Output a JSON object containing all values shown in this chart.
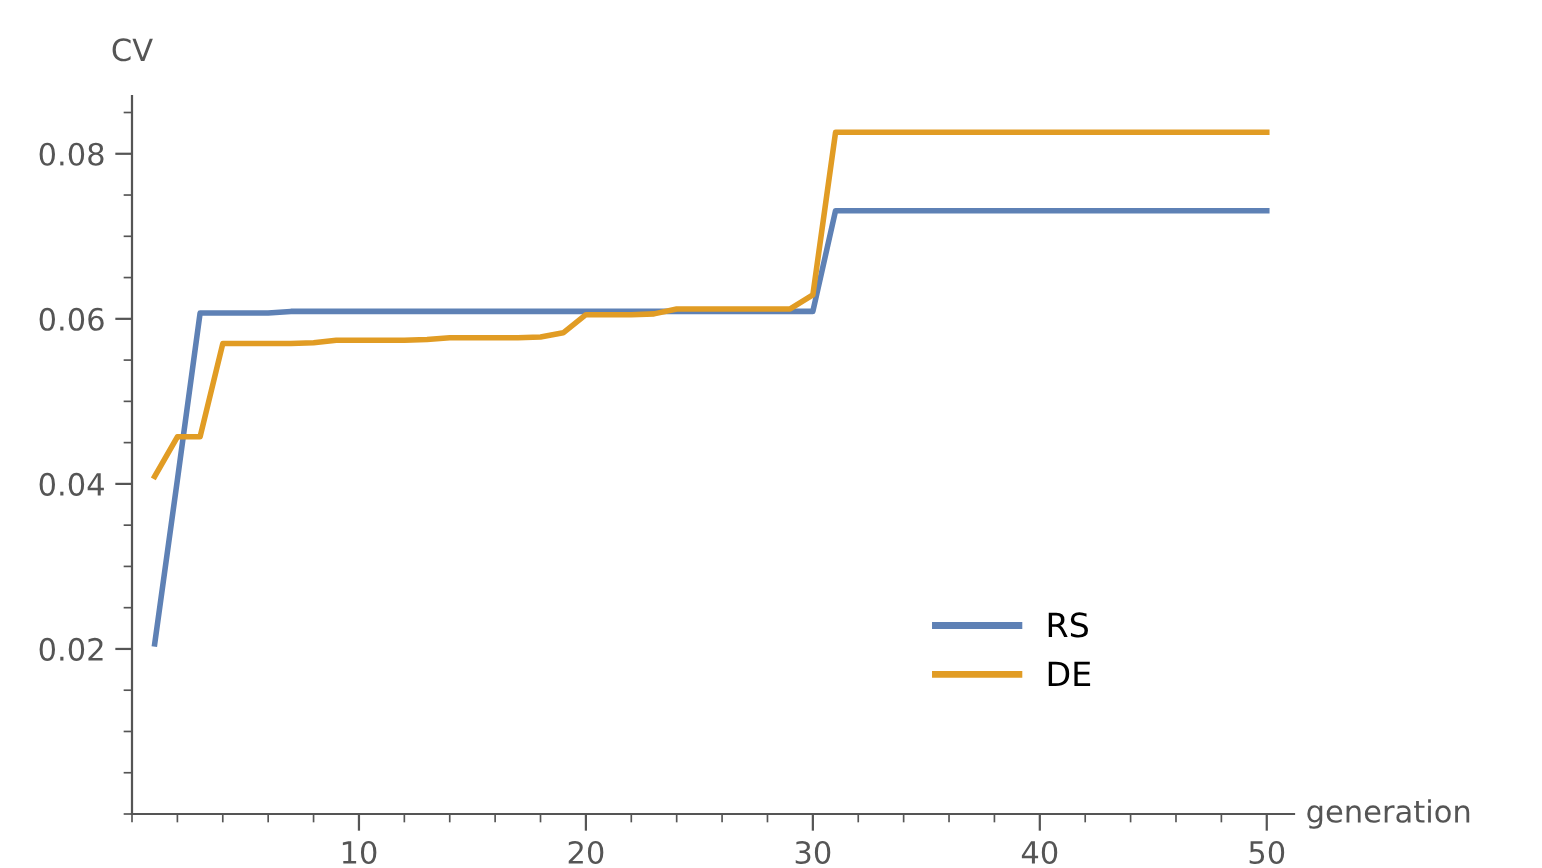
{
  "chart_data": {
    "type": "line",
    "xlabel": "generation",
    "ylabel": "CV",
    "x": [
      1,
      2,
      3,
      4,
      5,
      6,
      7,
      8,
      9,
      10,
      11,
      12,
      13,
      14,
      15,
      16,
      17,
      18,
      19,
      20,
      21,
      22,
      23,
      24,
      25,
      26,
      27,
      28,
      29,
      30,
      31,
      32,
      33,
      34,
      35,
      36,
      37,
      38,
      39,
      40,
      41,
      42,
      43,
      44,
      45,
      46,
      47,
      48,
      49,
      50
    ],
    "series": [
      {
        "name": "RS",
        "color": "#5e81b5",
        "values": [
          0.0206,
          0.0405,
          0.0607,
          0.0607,
          0.0607,
          0.0607,
          0.0609,
          0.0609,
          0.0609,
          0.0609,
          0.0609,
          0.0609,
          0.0609,
          0.0609,
          0.0609,
          0.0609,
          0.0609,
          0.0609,
          0.0609,
          0.0609,
          0.0609,
          0.0609,
          0.0609,
          0.0609,
          0.0609,
          0.0609,
          0.0609,
          0.0609,
          0.0609,
          0.0609,
          0.0731,
          0.0731,
          0.0731,
          0.0731,
          0.0731,
          0.0731,
          0.0731,
          0.0731,
          0.0731,
          0.0731,
          0.0731,
          0.0731,
          0.0731,
          0.0731,
          0.0731,
          0.0731,
          0.0731,
          0.0731,
          0.0731,
          0.0731
        ]
      },
      {
        "name": "DE",
        "color": "#e19c24",
        "values": [
          0.0409,
          0.0457,
          0.0457,
          0.057,
          0.057,
          0.057,
          0.057,
          0.0571,
          0.0574,
          0.0574,
          0.0574,
          0.0574,
          0.0575,
          0.0577,
          0.0577,
          0.0577,
          0.0577,
          0.0578,
          0.0583,
          0.0605,
          0.0605,
          0.0605,
          0.0606,
          0.0612,
          0.0612,
          0.0612,
          0.0612,
          0.0612,
          0.0612,
          0.0629,
          0.0826,
          0.0826,
          0.0826,
          0.0826,
          0.0826,
          0.0826,
          0.0826,
          0.0826,
          0.0826,
          0.0826,
          0.0826,
          0.0826,
          0.0826,
          0.0826,
          0.0826,
          0.0826,
          0.0826,
          0.0826,
          0.0826,
          0.0826
        ]
      }
    ],
    "xlim": [
      0,
      51.2
    ],
    "xticks": [
      10,
      20,
      30,
      40,
      50
    ],
    "ylim": [
      0,
      0.087
    ],
    "yticks": [
      0.02,
      0.04,
      0.06,
      0.08
    ],
    "grid": false,
    "legend": "bottom right",
    "marker": "none",
    "line_style": "solid"
  }
}
